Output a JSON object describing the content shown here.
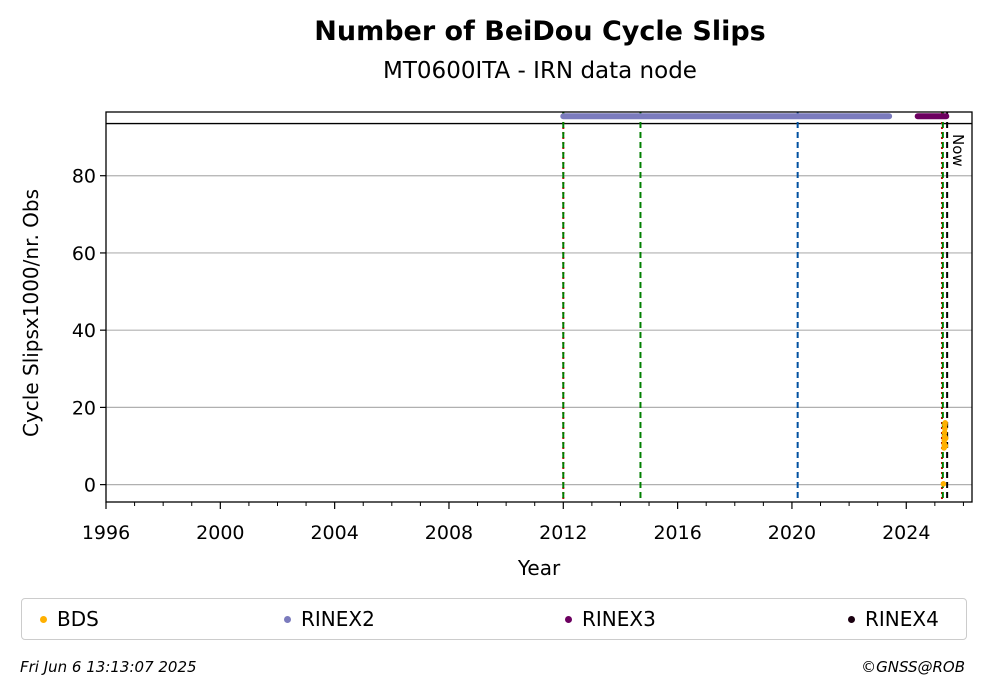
{
  "chart_data": {
    "type": "scatter",
    "title": "Number of BeiDou Cycle Slips",
    "subtitle": "MT0600ITA - IRN data node",
    "xlabel": "Year",
    "ylabel": "Cycle Slipsx1000/nr. Obs",
    "xlim": [
      1996,
      2026.3
    ],
    "ylim": [
      -4.5,
      96.5
    ],
    "x_ticks": [
      1996,
      2000,
      2004,
      2008,
      2012,
      2016,
      2020,
      2024
    ],
    "y_ticks": [
      0,
      20,
      40,
      60,
      80
    ],
    "grid": "horizontal",
    "legend_position": "bottom",
    "now_label": "Now",
    "now_x": 2025.43,
    "top_band_y": 93.5,
    "series": [
      {
        "name": "BDS",
        "color": "#ffb000",
        "points": [
          [
            2025.3,
            0.2
          ],
          [
            2025.32,
            9.5
          ],
          [
            2025.33,
            10.5
          ],
          [
            2025.33,
            11.5
          ],
          [
            2025.34,
            12.5
          ],
          [
            2025.34,
            13.5
          ],
          [
            2025.35,
            14.5
          ],
          [
            2025.35,
            15.5
          ],
          [
            2025.36,
            16.0
          ],
          [
            2025.37,
            10.0
          ],
          [
            2025.38,
            12.0
          ]
        ]
      },
      {
        "name": "RINEX2",
        "color": "#7b7bbd",
        "ranges": [
          [
            2012.0,
            2023.4
          ]
        ],
        "y": 95.4
      },
      {
        "name": "RINEX3",
        "color": "#6c0060",
        "ranges": [
          [
            2024.4,
            2025.4
          ]
        ],
        "y": 95.4
      },
      {
        "name": "RINEX4",
        "color": "#1a0010",
        "ranges": [],
        "y": 95.4
      }
    ],
    "vlines": [
      {
        "x": 2012.0,
        "color": "#cc0000",
        "style": "dotted"
      },
      {
        "x": 2012.0,
        "color": "#007f00",
        "style": "dashed"
      },
      {
        "x": 2014.7,
        "color": "#007f00",
        "style": "dashed"
      },
      {
        "x": 2020.2,
        "color": "#0050a0",
        "style": "dashed"
      },
      {
        "x": 2025.25,
        "color": "#cc0000",
        "style": "dotted"
      },
      {
        "x": 2025.28,
        "color": "#007f00",
        "style": "dashed"
      },
      {
        "x": 2025.43,
        "color": "#000000",
        "style": "dashed"
      }
    ]
  },
  "legend": {
    "items": [
      {
        "label": "BDS",
        "color": "#ffb000"
      },
      {
        "label": "RINEX2",
        "color": "#7b7bbd"
      },
      {
        "label": "RINEX3",
        "color": "#6c0060"
      },
      {
        "label": "RINEX4",
        "color": "#1a0010"
      }
    ]
  },
  "footer": {
    "date": "Fri Jun  6 13:13:07 2025",
    "copyright": "©GNSS@ROB"
  }
}
